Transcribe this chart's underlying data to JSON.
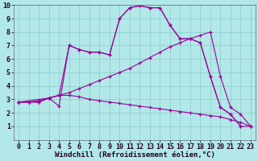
{
  "xlabel": "Windchill (Refroidissement éolien,°C)",
  "xlim": [
    -0.5,
    23.5
  ],
  "ylim": [
    0,
    10
  ],
  "bg_color": "#b3e8e8",
  "line_color": "#990099",
  "grid_color": "#88cccc",
  "xticks": [
    0,
    1,
    2,
    3,
    4,
    5,
    6,
    7,
    8,
    9,
    10,
    11,
    12,
    13,
    14,
    15,
    16,
    17,
    18,
    19,
    20,
    21,
    22,
    23
  ],
  "yticks": [
    1,
    2,
    3,
    4,
    5,
    6,
    7,
    8,
    9,
    10
  ],
  "xlabel_fontsize": 6.5,
  "tick_fontsize": 6,
  "line1_x": [
    0,
    1,
    2,
    3,
    4,
    5,
    6,
    7,
    8,
    9,
    10,
    11,
    12,
    13,
    14,
    15,
    16,
    17,
    18,
    19,
    20,
    21,
    22
  ],
  "line1_y": [
    2.8,
    2.8,
    2.8,
    3.1,
    2.5,
    7.0,
    6.7,
    6.5,
    6.5,
    6.3,
    9.0,
    9.8,
    9.95,
    9.8,
    9.8,
    8.5,
    7.5,
    7.5,
    7.2,
    4.7,
    2.4,
    1.9,
    1.0
  ],
  "line2_x": [
    0,
    3,
    4,
    5,
    6,
    7,
    8,
    9,
    10,
    11,
    12,
    13,
    14,
    15,
    16,
    17,
    18,
    19,
    20,
    21,
    22,
    23
  ],
  "line2_y": [
    2.8,
    3.1,
    3.3,
    7.0,
    6.7,
    6.5,
    6.5,
    6.3,
    9.0,
    9.8,
    9.95,
    9.8,
    9.8,
    8.5,
    7.5,
    7.5,
    7.2,
    4.7,
    2.4,
    1.9,
    1.0,
    1.0
  ],
  "line3_x": [
    0,
    1,
    2,
    3,
    4,
    5,
    6,
    7,
    8,
    9,
    10,
    11,
    12,
    13,
    14,
    15,
    16,
    17,
    18,
    19,
    20,
    21,
    22,
    23
  ],
  "line3_y": [
    2.8,
    2.8,
    2.9,
    3.1,
    3.3,
    3.5,
    3.8,
    4.1,
    4.4,
    4.7,
    5.0,
    5.3,
    5.7,
    6.1,
    6.5,
    6.9,
    7.2,
    7.5,
    7.75,
    8.0,
    4.7,
    2.4,
    1.9,
    1.0
  ],
  "line4_x": [
    0,
    1,
    2,
    3,
    4,
    5,
    6,
    7,
    8,
    9,
    10,
    11,
    12,
    13,
    14,
    15,
    16,
    17,
    18,
    19,
    20,
    21,
    22,
    23
  ],
  "line4_y": [
    2.8,
    2.8,
    2.8,
    3.1,
    3.3,
    3.3,
    3.2,
    3.0,
    2.9,
    2.8,
    2.7,
    2.6,
    2.5,
    2.4,
    2.3,
    2.2,
    2.1,
    2.0,
    1.9,
    1.8,
    1.7,
    1.5,
    1.3,
    1.0
  ]
}
